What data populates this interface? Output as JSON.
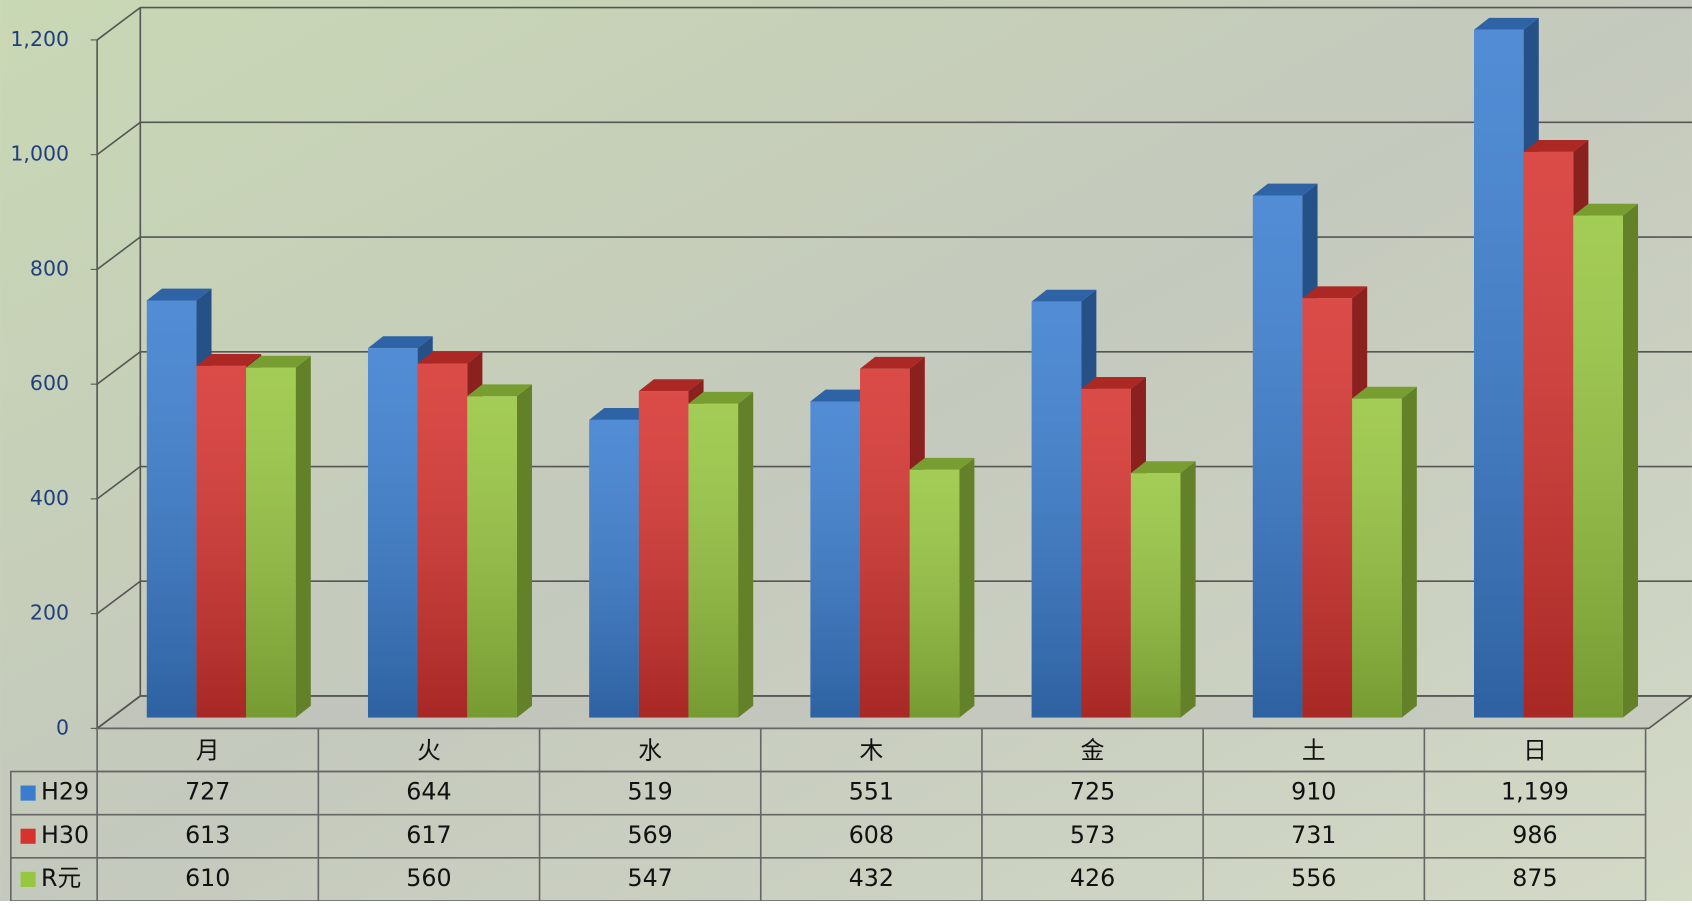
{
  "chart_data": {
    "type": "bar",
    "categories": [
      "月",
      "火",
      "水",
      "木",
      "金",
      "土",
      "日"
    ],
    "series": [
      {
        "name": "H29",
        "color": "#3a7dcf",
        "values": [
          727,
          644,
          519,
          551,
          725,
          910,
          1199
        ],
        "value_labels": [
          "727",
          "644",
          "519",
          "551",
          "725",
          "910",
          "1,199"
        ]
      },
      {
        "name": "H30",
        "color": "#d6332f",
        "values": [
          613,
          617,
          569,
          608,
          573,
          731,
          986
        ],
        "value_labels": [
          "613",
          "617",
          "569",
          "608",
          "573",
          "731",
          "986"
        ]
      },
      {
        "name": "R元",
        "color": "#97c63f",
        "values": [
          610,
          560,
          547,
          432,
          426,
          556,
          875
        ],
        "value_labels": [
          "610",
          "560",
          "547",
          "432",
          "426",
          "556",
          "875"
        ]
      }
    ],
    "ylim": [
      0,
      1200
    ],
    "yticks": [
      0,
      200,
      400,
      600,
      800,
      {
        "value": 1000,
        "label": "1,000"
      },
      {
        "value": 1200,
        "label": "1,200"
      }
    ],
    "grid": true
  }
}
